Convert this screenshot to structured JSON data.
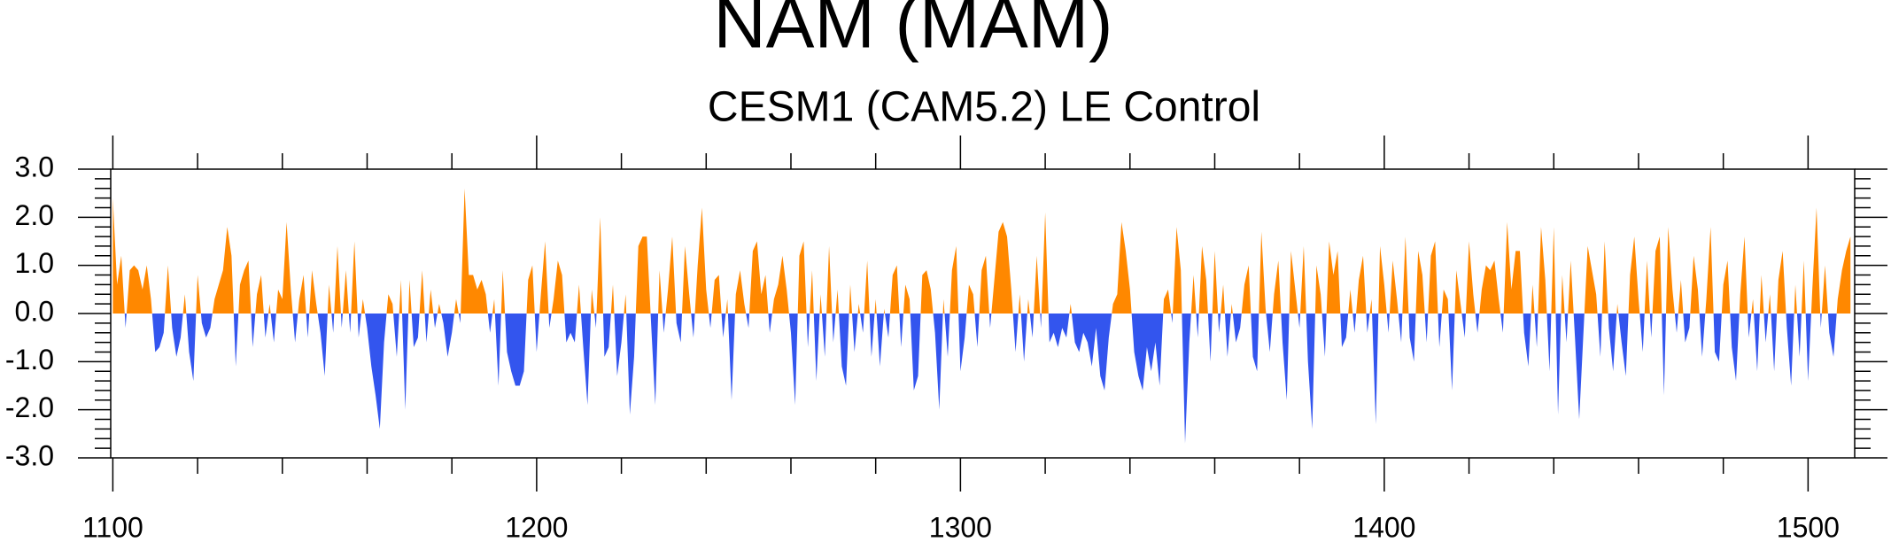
{
  "chart_data": {
    "type": "area",
    "title": "NAM (MAM)",
    "subtitle": "CESM1 (CAM5.2) LE Control",
    "positive_color": "#ff8800",
    "negative_color": "#3355ee",
    "xlim": [
      1099.5,
      1511
    ],
    "ylim": [
      -3,
      3
    ],
    "xticks": [
      1100,
      1200,
      1300,
      1400,
      1500
    ],
    "xminorticks": [
      1120,
      1140,
      1160,
      1180,
      1220,
      1240,
      1260,
      1280,
      1320,
      1340,
      1360,
      1380,
      1420,
      1440,
      1460,
      1480
    ],
    "yticks": [
      {
        "value": -3,
        "label": "-3.0"
      },
      {
        "value": -2,
        "label": "-2.0"
      },
      {
        "value": -1,
        "label": "-1.0"
      },
      {
        "value": 0,
        "label": "0.0"
      },
      {
        "value": 1,
        "label": "1.0"
      },
      {
        "value": 2,
        "label": "2.0"
      },
      {
        "value": 3,
        "label": "3.0"
      }
    ],
    "yminorticks": [
      -2.8,
      -2.6,
      -2.4,
      -2.2,
      -1.8,
      -1.6,
      -1.4,
      -1.2,
      -0.8,
      -0.6,
      -0.4,
      -0.2,
      0.2,
      0.4,
      0.6,
      0.8,
      1.2,
      1.4,
      1.6,
      1.8,
      2.2,
      2.4,
      2.6,
      2.8
    ],
    "x": [
      1100,
      1101,
      1102,
      1103,
      1104,
      1105,
      1106,
      1107,
      1108,
      1109,
      1110,
      1111,
      1112,
      1113,
      1114,
      1115,
      1116,
      1117,
      1118,
      1119,
      1120,
      1121,
      1122,
      1123,
      1124,
      1125,
      1126,
      1127,
      1128,
      1129,
      1130,
      1131,
      1132,
      1133,
      1134,
      1135,
      1136,
      1137,
      1138,
      1139,
      1140,
      1141,
      1142,
      1143,
      1144,
      1145,
      1146,
      1147,
      1148,
      1149,
      1150,
      1151,
      1152,
      1153,
      1154,
      1155,
      1156,
      1157,
      1158,
      1159,
      1160,
      1161,
      1162,
      1163,
      1164,
      1165,
      1166,
      1167,
      1168,
      1169,
      1170,
      1171,
      1172,
      1173,
      1174,
      1175,
      1176,
      1177,
      1178,
      1179,
      1180,
      1181,
      1182,
      1183,
      1184,
      1185,
      1186,
      1187,
      1188,
      1189,
      1190,
      1191,
      1192,
      1193,
      1194,
      1195,
      1196,
      1197,
      1198,
      1199,
      1200,
      1201,
      1202,
      1203,
      1204,
      1205,
      1206,
      1207,
      1208,
      1209,
      1210,
      1211,
      1212,
      1213,
      1214,
      1215,
      1216,
      1217,
      1218,
      1219,
      1220,
      1221,
      1222,
      1223,
      1224,
      1225,
      1226,
      1227,
      1228,
      1229,
      1230,
      1231,
      1232,
      1233,
      1234,
      1235,
      1236,
      1237,
      1238,
      1239,
      1240,
      1241,
      1242,
      1243,
      1244,
      1245,
      1246,
      1247,
      1248,
      1249,
      1250,
      1251,
      1252,
      1253,
      1254,
      1255,
      1256,
      1257,
      1258,
      1259,
      1260,
      1261,
      1262,
      1263,
      1264,
      1265,
      1266,
      1267,
      1268,
      1269,
      1270,
      1271,
      1272,
      1273,
      1274,
      1275,
      1276,
      1277,
      1278,
      1279,
      1280,
      1281,
      1282,
      1283,
      1284,
      1285,
      1286,
      1287,
      1288,
      1289,
      1290,
      1291,
      1292,
      1293,
      1294,
      1295,
      1296,
      1297,
      1298,
      1299,
      1300,
      1301,
      1302,
      1303,
      1304,
      1305,
      1306,
      1307,
      1308,
      1309,
      1310,
      1311,
      1312,
      1313,
      1314,
      1315,
      1316,
      1317,
      1318,
      1319,
      1320,
      1321,
      1322,
      1323,
      1324,
      1325,
      1326,
      1327,
      1328,
      1329,
      1330,
      1331,
      1332,
      1333,
      1334,
      1335,
      1336,
      1337,
      1338,
      1339,
      1340,
      1341,
      1342,
      1343,
      1344,
      1345,
      1346,
      1347,
      1348,
      1349,
      1350,
      1351,
      1352,
      1353,
      1354,
      1355,
      1356,
      1357,
      1358,
      1359,
      1360,
      1361,
      1362,
      1363,
      1364,
      1365,
      1366,
      1367,
      1368,
      1369,
      1370,
      1371,
      1372,
      1373,
      1374,
      1375,
      1376,
      1377,
      1378,
      1379,
      1380,
      1381,
      1382,
      1383,
      1384,
      1385,
      1386,
      1387,
      1388,
      1389,
      1390,
      1391,
      1392,
      1393,
      1394,
      1395,
      1396,
      1397,
      1398,
      1399,
      1400,
      1401,
      1402,
      1403,
      1404,
      1405,
      1406,
      1407,
      1408,
      1409,
      1410,
      1411,
      1412,
      1413,
      1414,
      1415,
      1416,
      1417,
      1418,
      1419,
      1420,
      1421,
      1422,
      1423,
      1424,
      1425,
      1426,
      1427,
      1428,
      1429,
      1430,
      1431,
      1432,
      1433,
      1434,
      1435,
      1436,
      1437,
      1438,
      1439,
      1440,
      1441,
      1442,
      1443,
      1444,
      1445,
      1446,
      1447,
      1448,
      1449,
      1450,
      1451,
      1452,
      1453,
      1454,
      1455,
      1456,
      1457,
      1458,
      1459,
      1460,
      1461,
      1462,
      1463,
      1464,
      1465,
      1466,
      1467,
      1468,
      1469,
      1470,
      1471,
      1472,
      1473,
      1474,
      1475,
      1476,
      1477,
      1478,
      1479,
      1480,
      1481,
      1482,
      1483,
      1484,
      1485,
      1486,
      1487,
      1488,
      1489,
      1490,
      1491,
      1492,
      1493,
      1494,
      1495,
      1496,
      1497,
      1498,
      1499,
      1500,
      1501,
      1502,
      1503,
      1504,
      1505,
      1506,
      1507,
      1508,
      1509,
      1510
    ],
    "values": [
      2.4,
      0.6,
      1.2,
      -0.3,
      0.9,
      1.0,
      0.9,
      0.5,
      1.0,
      0.3,
      -0.8,
      -0.7,
      -0.4,
      1.0,
      -0.3,
      -0.9,
      -0.5,
      0.4,
      -0.8,
      -1.4,
      0.8,
      -0.2,
      -0.5,
      -0.3,
      0.3,
      0.6,
      0.9,
      1.8,
      1.2,
      -1.1,
      0.6,
      0.9,
      1.1,
      -0.7,
      0.4,
      0.8,
      -0.5,
      0.2,
      -0.6,
      0.5,
      0.3,
      1.9,
      0.5,
      -0.6,
      0.3,
      0.8,
      -0.5,
      0.9,
      0.2,
      -0.4,
      -1.3,
      0.6,
      -0.4,
      1.4,
      -0.3,
      0.9,
      -0.4,
      1.5,
      -0.5,
      0.3,
      -0.3,
      -1.1,
      -1.7,
      -2.4,
      -0.6,
      0.4,
      0.2,
      -0.9,
      0.7,
      -2.0,
      0.7,
      -0.7,
      -0.5,
      0.9,
      -0.6,
      0.5,
      -0.3,
      0.2,
      -0.2,
      -0.9,
      -0.4,
      0.3,
      -0.2,
      2.6,
      0.8,
      0.8,
      0.5,
      0.7,
      0.4,
      -0.4,
      0.3,
      -1.5,
      0.9,
      -0.8,
      -1.2,
      -1.5,
      -1.5,
      -1.2,
      0.7,
      1.0,
      -0.8,
      0.4,
      1.5,
      -0.3,
      0.3,
      1.1,
      0.8,
      -0.6,
      -0.4,
      -0.6,
      0.6,
      -0.7,
      -1.9,
      0.5,
      -0.3,
      2.0,
      -0.9,
      -0.7,
      0.6,
      -1.3,
      -0.6,
      0.4,
      -2.1,
      -0.9,
      1.4,
      1.6,
      1.6,
      -0.2,
      -1.9,
      0.9,
      -0.4,
      0.5,
      1.6,
      -0.2,
      -0.6,
      1.4,
      0.4,
      -0.5,
      1.0,
      2.2,
      0.5,
      -0.3,
      0.7,
      0.8,
      -0.5,
      0.3,
      -1.8,
      0.4,
      0.9,
      0.2,
      -0.3,
      1.3,
      1.5,
      0.4,
      0.8,
      -0.4,
      0.3,
      0.6,
      1.2,
      0.5,
      -0.4,
      -1.9,
      1.2,
      1.5,
      -0.7,
      0.9,
      -1.4,
      0.4,
      -0.9,
      1.4,
      -0.6,
      0.5,
      -1.1,
      -1.5,
      0.6,
      -0.8,
      0.2,
      -0.4,
      1.1,
      -0.9,
      0.3,
      -1.1,
      0.1,
      -0.5,
      0.8,
      1.0,
      -0.7,
      0.6,
      0.3,
      -1.6,
      -1.3,
      0.8,
      0.9,
      0.5,
      -0.4,
      -2.0,
      0.3,
      -0.9,
      0.9,
      1.4,
      -1.2,
      -0.5,
      0.6,
      0.4,
      -0.7,
      0.9,
      1.2,
      -0.3,
      0.7,
      1.7,
      1.9,
      1.6,
      0.5,
      -0.8,
      0.4,
      -1.0,
      0.3,
      -0.5,
      1.2,
      -0.3,
      2.1,
      -0.6,
      -0.4,
      -0.7,
      -0.3,
      -0.5,
      0.2,
      -0.6,
      -0.8,
      -0.4,
      -0.6,
      -1.1,
      -0.3,
      -1.3,
      -1.6,
      -0.5,
      0.2,
      0.4,
      1.9,
      1.3,
      0.5,
      -0.8,
      -1.3,
      -1.6,
      -0.7,
      -1.2,
      -0.6,
      -1.5,
      0.3,
      0.5,
      -0.2,
      1.8,
      0.9,
      -2.7,
      -0.6,
      0.8,
      -0.5,
      1.4,
      0.7,
      -1.0,
      1.3,
      -0.4,
      0.6,
      -0.9,
      0.2,
      -0.6,
      -0.3,
      0.6,
      1.0,
      -0.9,
      -1.2,
      1.7,
      0.1,
      -0.8,
      0.4,
      1.1,
      -0.6,
      -1.8,
      1.3,
      0.5,
      -0.3,
      1.4,
      -1.0,
      -2.4,
      1.0,
      0.4,
      -0.9,
      1.5,
      0.8,
      1.3,
      -0.7,
      -0.5,
      0.5,
      -0.4,
      0.7,
      1.2,
      -0.4,
      0.3,
      -2.3,
      1.4,
      0.6,
      -0.4,
      1.1,
      0.3,
      -0.6,
      1.6,
      -0.5,
      -1.0,
      1.3,
      0.8,
      -0.6,
      1.2,
      1.5,
      -0.7,
      0.5,
      0.3,
      -1.6,
      0.9,
      0.2,
      -0.5,
      1.5,
      0.4,
      -0.4,
      0.5,
      1.0,
      0.9,
      1.1,
      0.3,
      -0.4,
      1.9,
      0.5,
      1.3,
      1.3,
      -0.4,
      -1.1,
      0.6,
      -0.7,
      1.8,
      0.7,
      -1.2,
      1.8,
      -2.1,
      0.8,
      -0.6,
      1.1,
      -0.5,
      -2.2,
      -0.4,
      1.4,
      0.9,
      0.4,
      -0.9,
      1.5,
      -0.3,
      -1.2,
      0.2,
      -0.6,
      -1.3,
      0.8,
      1.6,
      0.3,
      -0.8,
      1.1,
      -0.5,
      1.3,
      1.6,
      -1.7,
      1.8,
      0.5,
      -0.4,
      0.7,
      -0.6,
      -0.3,
      1.2,
      0.5,
      -0.9,
      0.3,
      1.8,
      -0.8,
      -1.0,
      0.6,
      1.1,
      -0.7,
      -1.4,
      0.4,
      1.6,
      -0.5,
      0.3,
      -1.2,
      0.8,
      -0.6,
      0.4,
      -1.2,
      0.7,
      1.3,
      -0.3,
      -1.5,
      0.6,
      -0.9,
      1.1,
      -1.4,
      0.5,
      2.2,
      -0.3,
      1.0,
      -0.4,
      -0.9,
      0.3,
      0.9,
      1.3,
      1.6
    ]
  }
}
